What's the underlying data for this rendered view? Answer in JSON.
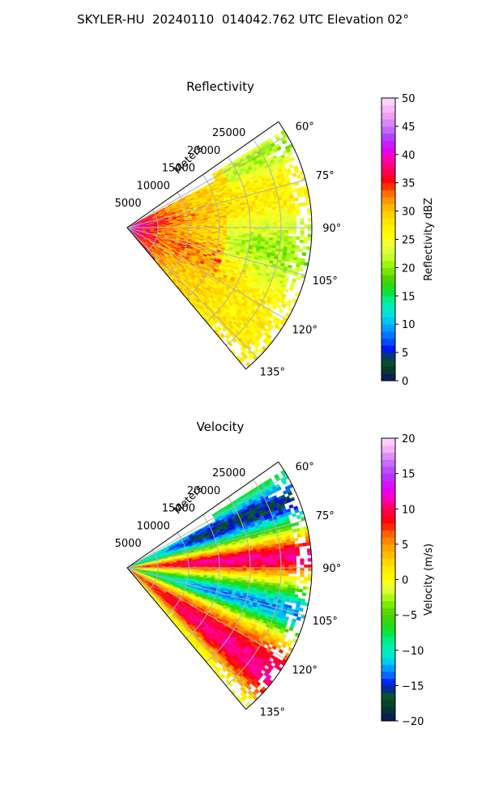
{
  "figure": {
    "suptitle": "SKYLER-HU  20240110  014042.762 UTC Elevation 02°"
  },
  "chart_data": [
    {
      "type": "heatmap",
      "projection": "polar-sector",
      "title": "Reflectivity",
      "range_axis_label": "Meters",
      "range_ticks": [
        5000,
        10000,
        15000,
        20000,
        25000
      ],
      "range_tick_labels": [
        "5000",
        "10000",
        "15000",
        "20000",
        "25000"
      ],
      "range_max": 30000,
      "azimuth_range": [
        55,
        140
      ],
      "azimuth_ticks": [
        60,
        75,
        90,
        105,
        120,
        135
      ],
      "azimuth_tick_labels": [
        "60°",
        "75°",
        "90°",
        "105°",
        "120°",
        "135°"
      ],
      "grid": true,
      "colorbar": {
        "label": "Reflectivity dBZ",
        "range": [
          0,
          50
        ],
        "ticks": [
          0,
          5,
          10,
          15,
          20,
          25,
          30,
          35,
          40,
          45,
          50
        ],
        "tick_labels": [
          "0",
          "5",
          "10",
          "15",
          "20",
          "25",
          "30",
          "35",
          "40",
          "45",
          "50"
        ],
        "placement": "right"
      },
      "field_pattern": "high (35-45 dBZ) near radar, mostly 25-30 dBZ at mid/far range, lower (18-22 dBZ) at far range around 90-115°, gaps near edge"
    },
    {
      "type": "heatmap",
      "projection": "polar-sector",
      "title": "Velocity",
      "range_axis_label": "Meters",
      "range_ticks": [
        5000,
        10000,
        15000,
        20000,
        25000
      ],
      "range_tick_labels": [
        "5000",
        "10000",
        "15000",
        "20000",
        "25000"
      ],
      "range_max": 30000,
      "azimuth_range": [
        55,
        140
      ],
      "azimuth_ticks": [
        60,
        75,
        90,
        105,
        120,
        135
      ],
      "azimuth_tick_labels": [
        "60°",
        "75°",
        "90°",
        "105°",
        "120°",
        "135°"
      ],
      "grid": true,
      "colorbar": {
        "label": "Velocity (m/s)",
        "range": [
          -20,
          20
        ],
        "ticks": [
          -20,
          -15,
          -10,
          -5,
          0,
          5,
          10,
          15,
          20
        ],
        "tick_labels": [
          "−20",
          "−15",
          "−10",
          "−5",
          "0",
          "5",
          "10",
          "15",
          "20"
        ],
        "placement": "right"
      },
      "field_pattern": "negative (green/cyan -5 to -12 m/s) toward 60-70° and 100-110°, positive (red/magenta 8-15 m/s) toward 80-90° and 120-135°, near-zero yellow between bands"
    }
  ],
  "colormaps": {
    "reflectivity": [
      [
        0,
        "#0a1464"
      ],
      [
        2,
        "#083a2a"
      ],
      [
        4,
        "#0a5a2e"
      ],
      [
        5,
        "#0000e6"
      ],
      [
        7,
        "#0050ff"
      ],
      [
        10,
        "#00b4ff"
      ],
      [
        12,
        "#00e6d2"
      ],
      [
        14,
        "#00f0a0"
      ],
      [
        16,
        "#10e020"
      ],
      [
        18,
        "#50d000"
      ],
      [
        20,
        "#8cf000"
      ],
      [
        22,
        "#c8ff30"
      ],
      [
        24,
        "#f0ff40"
      ],
      [
        26,
        "#ffff00"
      ],
      [
        28,
        "#ffe600"
      ],
      [
        30,
        "#ffc800"
      ],
      [
        32,
        "#ff9600"
      ],
      [
        34,
        "#ff5000"
      ],
      [
        35,
        "#ff0000"
      ],
      [
        37,
        "#ff0050"
      ],
      [
        39,
        "#ff00a0"
      ],
      [
        41,
        "#e000ff"
      ],
      [
        43,
        "#b040ff"
      ],
      [
        45,
        "#d078ff"
      ],
      [
        47,
        "#f0a0f0"
      ],
      [
        50,
        "#ffe0ff"
      ]
    ],
    "velocity": [
      [
        -20,
        "#0a1464"
      ],
      [
        -18,
        "#083a2a"
      ],
      [
        -16,
        "#0a5a2e"
      ],
      [
        -15,
        "#0000e6"
      ],
      [
        -14,
        "#0050ff"
      ],
      [
        -12,
        "#00b4ff"
      ],
      [
        -11,
        "#00e6d2"
      ],
      [
        -9,
        "#00f0a0"
      ],
      [
        -7,
        "#10e020"
      ],
      [
        -5,
        "#50d000"
      ],
      [
        -3,
        "#8cf000"
      ],
      [
        -2,
        "#c8ff30"
      ],
      [
        -1,
        "#f0ff40"
      ],
      [
        0,
        "#ffff00"
      ],
      [
        2,
        "#ffe600"
      ],
      [
        3,
        "#ffc800"
      ],
      [
        5,
        "#ff9600"
      ],
      [
        7,
        "#ff5000"
      ],
      [
        8,
        "#ff0000"
      ],
      [
        10,
        "#ff0050"
      ],
      [
        11,
        "#ff00a0"
      ],
      [
        13,
        "#e000ff"
      ],
      [
        15,
        "#b040ff"
      ],
      [
        17,
        "#d078ff"
      ],
      [
        18,
        "#f0a0f0"
      ],
      [
        20,
        "#ffe0ff"
      ]
    ]
  }
}
